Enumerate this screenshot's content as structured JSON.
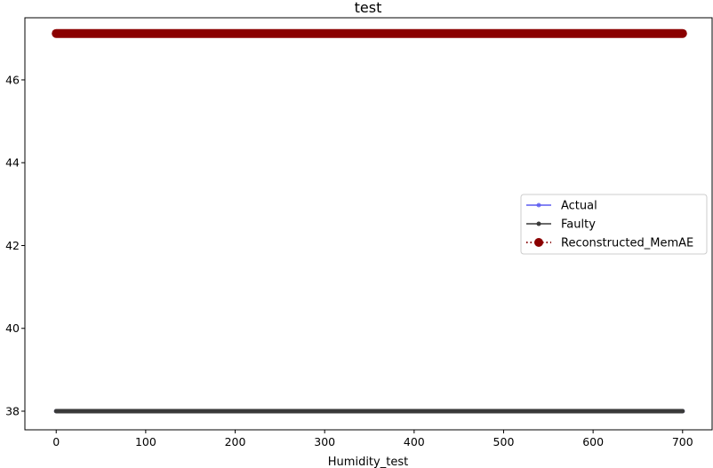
{
  "chart_data": {
    "type": "line",
    "title": "test",
    "xlabel": "Humidity_test",
    "ylabel": "",
    "xlim": [
      -35,
      733
    ],
    "ylim": [
      37.55,
      47.5
    ],
    "x_ticks": [
      0,
      100,
      200,
      300,
      400,
      500,
      600,
      700
    ],
    "y_ticks": [
      38,
      40,
      42,
      44,
      46
    ],
    "x_range": [
      0,
      700
    ],
    "grid": false,
    "legend_position": "center-right",
    "series": [
      {
        "name": "Actual",
        "color": "#5b5bf0",
        "style": "solid-line-small-dot-markers",
        "constant_value": 38.0
      },
      {
        "name": "Faulty",
        "color": "#3a3a3a",
        "style": "solid-line-small-dot-markers",
        "constant_value": 38.0
      },
      {
        "name": "Reconstructed_MemAE",
        "color": "#8b0000",
        "style": "dotted-line-large-dot-markers",
        "constant_value": 47.12
      }
    ]
  }
}
